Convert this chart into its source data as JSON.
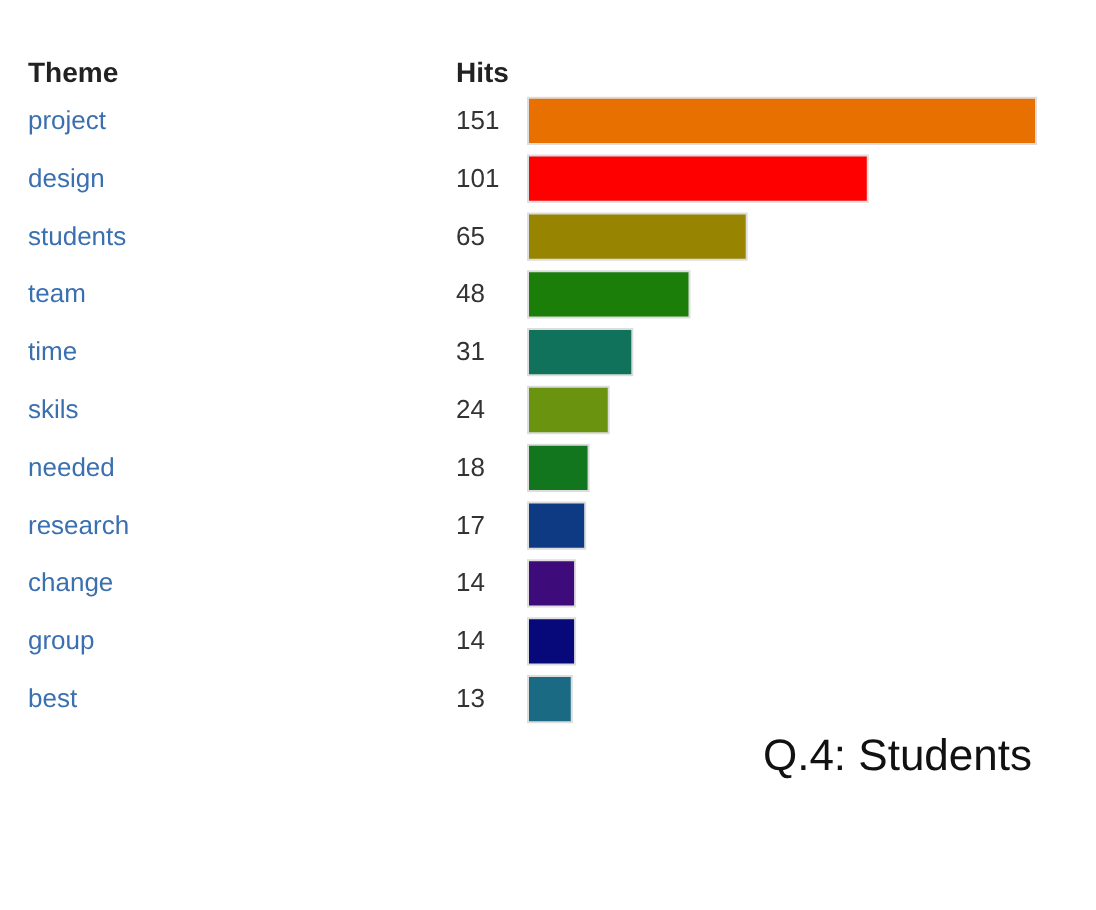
{
  "chart_data": {
    "type": "bar",
    "orientation": "horizontal",
    "ylabel": "Theme",
    "xlabel": "Hits",
    "categories": [
      "project",
      "design",
      "students",
      "team",
      "time",
      "skils",
      "needed",
      "research",
      "change",
      "group",
      "best"
    ],
    "values": [
      151,
      101,
      65,
      48,
      31,
      24,
      18,
      17,
      14,
      14,
      13
    ],
    "colors": [
      "#e87000",
      "#fe0000",
      "#978400",
      "#1a7e08",
      "#10725a",
      "#6a9310",
      "#12761e",
      "#0d3a82",
      "#3e0c7a",
      "#07087a",
      "#196a82"
    ],
    "data_labels": true,
    "annotations": [
      "Q.4: Students"
    ]
  }
}
